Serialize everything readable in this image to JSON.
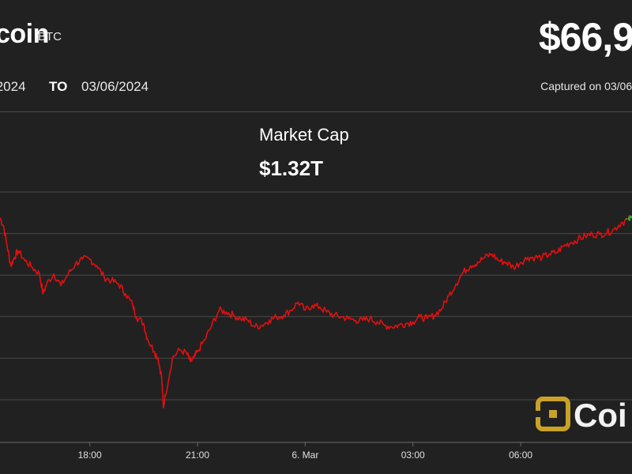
{
  "header": {
    "coin_name": "coin",
    "ticker": "BTC",
    "price": "$66,9",
    "date_from": "/2024",
    "to_label": "TO",
    "date_to": "03/06/2024",
    "captured": "Captured on 03/06/"
  },
  "market_cap": {
    "label": "Market Cap",
    "value": "$1.32T"
  },
  "watermark": "Coi",
  "colors": {
    "background": "#212121",
    "down": "#e01010",
    "up": "#22c43a",
    "grid": "#4a4a4a",
    "logo": "#c9a227"
  },
  "chart_data": {
    "type": "line",
    "title": "",
    "xlabel": "",
    "ylabel": "",
    "x_ticks": [
      "18:00",
      "21:00",
      "6. Mar",
      "03:00",
      "06:00"
    ],
    "x_tick_hours": [
      18,
      21,
      24,
      27,
      30
    ],
    "x_range_hours": [
      15.5,
      33.1
    ],
    "y_range_index": [
      0,
      100
    ],
    "y_grid_lines": 6,
    "grid": true,
    "series": [
      {
        "values_note_unit": "relative index",
        "points": [
          [
            15.5,
            68.0
          ],
          [
            15.6,
            65.5
          ],
          [
            15.7,
            59.5
          ],
          [
            15.8,
            53.5
          ],
          [
            15.9,
            56.0
          ],
          [
            16.0,
            58.0
          ],
          [
            16.2,
            55.0
          ],
          [
            16.4,
            53.0
          ],
          [
            16.6,
            51.0
          ],
          [
            16.7,
            45.0
          ],
          [
            16.8,
            48.0
          ],
          [
            17.0,
            51.0
          ],
          [
            17.2,
            47.5
          ],
          [
            17.4,
            51.0
          ],
          [
            17.6,
            54.0
          ],
          [
            17.8,
            55.5
          ],
          [
            18.0,
            55.5
          ],
          [
            18.2,
            53.5
          ],
          [
            18.4,
            50.0
          ],
          [
            18.6,
            49.0
          ],
          [
            18.8,
            48.0
          ],
          [
            19.0,
            45.0
          ],
          [
            19.2,
            41.5
          ],
          [
            19.3,
            38.0
          ],
          [
            19.5,
            36.0
          ],
          [
            19.6,
            31.5
          ],
          [
            19.8,
            27.5
          ],
          [
            19.9,
            25.5
          ],
          [
            20.0,
            20.0
          ],
          [
            20.05,
            10.5
          ],
          [
            20.1,
            14.0
          ],
          [
            20.3,
            25.5
          ],
          [
            20.5,
            28.0
          ],
          [
            20.7,
            27.0
          ],
          [
            20.8,
            24.5
          ],
          [
            20.9,
            25.5
          ],
          [
            21.0,
            27.5
          ],
          [
            21.2,
            31.0
          ],
          [
            21.4,
            35.5
          ],
          [
            21.6,
            40.0
          ],
          [
            21.8,
            39.5
          ],
          [
            22.0,
            38.5
          ],
          [
            22.2,
            37.5
          ],
          [
            22.4,
            37.0
          ],
          [
            22.6,
            35.0
          ],
          [
            22.8,
            35.5
          ],
          [
            23.0,
            37.0
          ],
          [
            23.2,
            38.0
          ],
          [
            23.4,
            38.5
          ],
          [
            23.6,
            40.0
          ],
          [
            23.8,
            42.5
          ],
          [
            24.0,
            40.0
          ],
          [
            24.2,
            41.5
          ],
          [
            24.4,
            41.0
          ],
          [
            24.6,
            39.5
          ],
          [
            24.8,
            38.5
          ],
          [
            25.0,
            38.0
          ],
          [
            25.2,
            37.5
          ],
          [
            25.4,
            37.0
          ],
          [
            25.6,
            37.0
          ],
          [
            25.8,
            37.5
          ],
          [
            26.0,
            36.5
          ],
          [
            26.2,
            35.5
          ],
          [
            26.4,
            35.0
          ],
          [
            26.6,
            35.5
          ],
          [
            26.8,
            36.0
          ],
          [
            27.0,
            36.5
          ],
          [
            27.2,
            38.0
          ],
          [
            27.4,
            37.5
          ],
          [
            27.6,
            38.5
          ],
          [
            27.8,
            40.5
          ],
          [
            28.0,
            44.5
          ],
          [
            28.2,
            48.0
          ],
          [
            28.4,
            51.5
          ],
          [
            28.6,
            53.5
          ],
          [
            28.8,
            54.5
          ],
          [
            29.0,
            56.0
          ],
          [
            29.2,
            57.0
          ],
          [
            29.4,
            55.0
          ],
          [
            29.6,
            54.5
          ],
          [
            29.8,
            53.0
          ],
          [
            30.0,
            54.5
          ],
          [
            30.2,
            56.0
          ],
          [
            30.4,
            56.0
          ],
          [
            30.6,
            56.0
          ],
          [
            30.8,
            57.0
          ],
          [
            31.0,
            57.5
          ],
          [
            31.2,
            59.5
          ],
          [
            31.4,
            60.5
          ],
          [
            31.6,
            61.5
          ],
          [
            31.8,
            62.5
          ],
          [
            32.0,
            63.0
          ],
          [
            32.2,
            63.0
          ],
          [
            32.4,
            63.5
          ],
          [
            32.6,
            64.5
          ],
          [
            32.8,
            66.5
          ],
          [
            33.0,
            67.5
          ],
          [
            33.1,
            68.0
          ]
        ]
      }
    ]
  }
}
